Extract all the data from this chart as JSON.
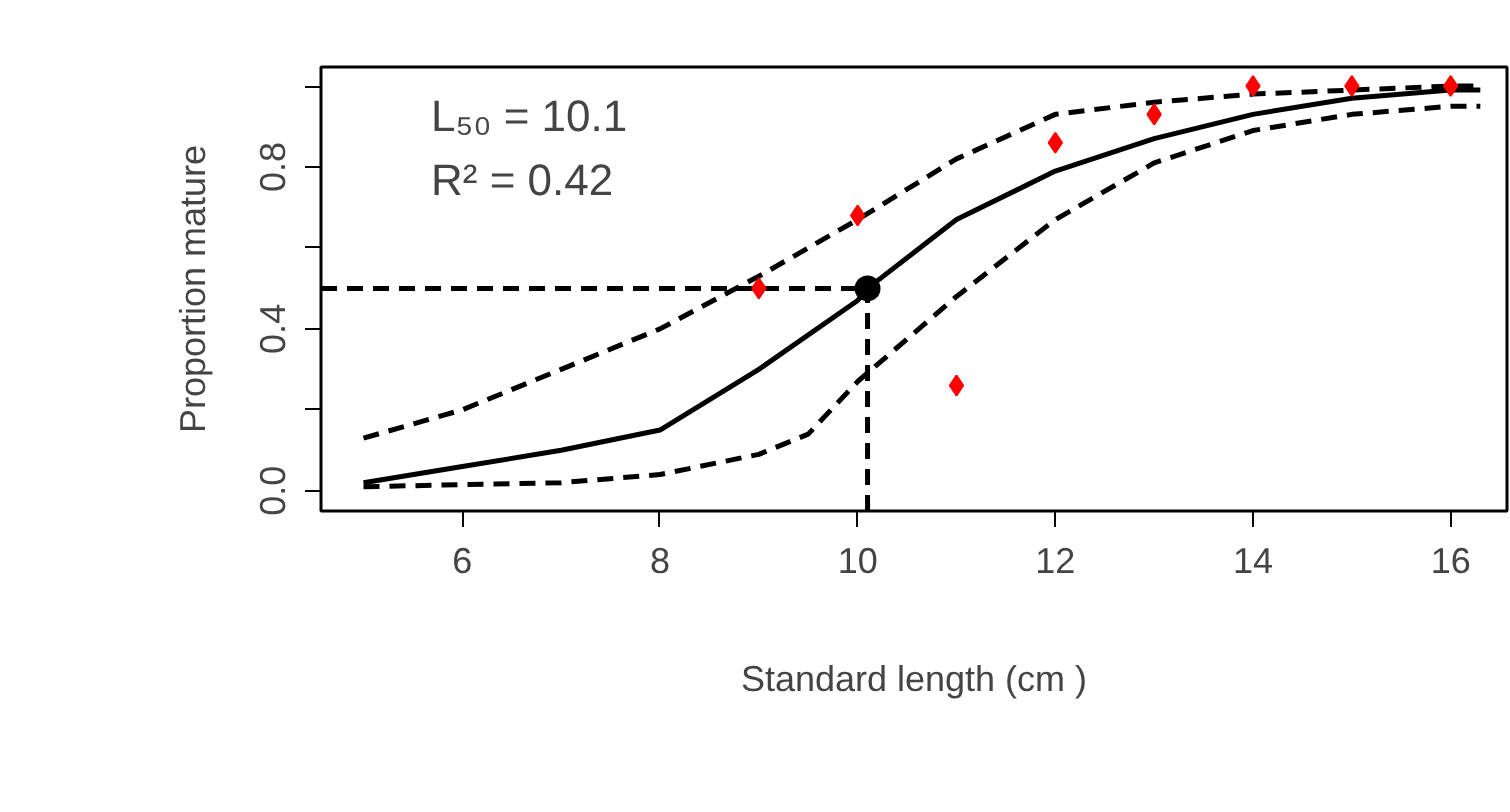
{
  "chart_data": {
    "type": "line",
    "xlabel": "Standard length (cm )",
    "ylabel": "Proportion mature",
    "xlim": [
      4.57,
      16.57
    ],
    "ylim": [
      -0.05,
      1.047
    ],
    "xticks": [
      6,
      8,
      10,
      12,
      14,
      16
    ],
    "yticks": [
      {
        "value": 0,
        "label": "0.0"
      },
      {
        "value": 0.2,
        "label": null
      },
      {
        "value": 0.4,
        "label": "0.4"
      },
      {
        "value": 0.6,
        "label": null
      },
      {
        "value": 0.8,
        "label": "0.8"
      },
      {
        "value": 1.0,
        "label": null
      }
    ],
    "grid": false,
    "annotations": [
      "L₅₀ = 10.1",
      "R² = 0.42"
    ],
    "series": [
      {
        "color": "#000000",
        "line_style": "solid",
        "x": [
          5,
          6,
          7,
          8,
          9,
          10,
          10.1,
          11,
          12,
          13,
          14,
          15,
          16,
          16.3
        ],
        "values": [
          0.02,
          0.06,
          0.1,
          0.15,
          0.3,
          0.47,
          0.5,
          0.67,
          0.79,
          0.87,
          0.93,
          0.97,
          0.99,
          0.99
        ]
      },
      {
        "color": "#000000",
        "line_style": "dashed",
        "x": [
          5,
          6,
          7,
          8,
          9,
          10,
          11,
          12,
          13,
          14,
          15,
          16,
          16.3
        ],
        "values": [
          0.13,
          0.2,
          0.3,
          0.4,
          0.53,
          0.67,
          0.82,
          0.93,
          0.96,
          0.98,
          0.99,
          1.0,
          1.0
        ]
      },
      {
        "color": "#000000",
        "line_style": "dashed",
        "x": [
          5,
          7,
          8,
          9,
          9.5,
          10,
          11,
          12,
          13,
          14,
          15,
          16,
          16.3
        ],
        "values": [
          0.01,
          0.02,
          0.04,
          0.09,
          0.14,
          0.27,
          0.48,
          0.67,
          0.81,
          0.89,
          0.93,
          0.95,
          0.95
        ]
      },
      {
        "color": "#000000",
        "line_style": "dashed",
        "x": [
          4.57,
          10.1
        ],
        "values": [
          0.5,
          0.5
        ]
      },
      {
        "color": "#000000",
        "line_style": "dashed",
        "x": [
          10.1,
          10.1
        ],
        "values": [
          -0.05,
          0.5
        ]
      },
      {
        "type": "scatter",
        "color": "#000000",
        "marker": "circle",
        "x": [
          10.1
        ],
        "values": [
          0.5
        ]
      },
      {
        "type": "scatter",
        "color": "#ff0000",
        "marker": "diamond",
        "x": [
          9,
          10,
          11,
          12,
          13,
          14,
          15,
          16
        ],
        "values": [
          0.5,
          0.68,
          0.26,
          0.86,
          0.93,
          1.0,
          1.0,
          1.0
        ]
      }
    ]
  }
}
